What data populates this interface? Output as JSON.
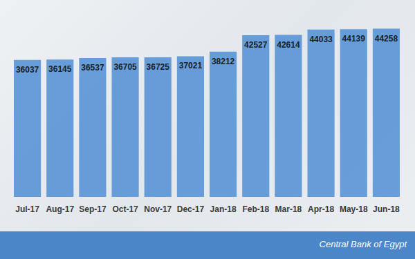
{
  "chart_data": {
    "type": "bar",
    "categories": [
      "Jul-17",
      "Aug-17",
      "Sep-17",
      "Oct-17",
      "Nov-17",
      "Dec-17",
      "Jan-18",
      "Feb-18",
      "Mar-18",
      "Apr-18",
      "May-18",
      "Jun-18"
    ],
    "values": [
      36037,
      36145,
      36537,
      36705,
      36725,
      37021,
      38212,
      42527,
      42614,
      44033,
      44139,
      44258
    ],
    "color": "#5b96d6",
    "ylim": [
      0,
      50000
    ],
    "yticks": [
      0,
      50000
    ],
    "grid": false,
    "data_labels": true,
    "tick_labels": "x",
    "annotations": [
      "Central Bank of Egypt"
    ]
  }
}
